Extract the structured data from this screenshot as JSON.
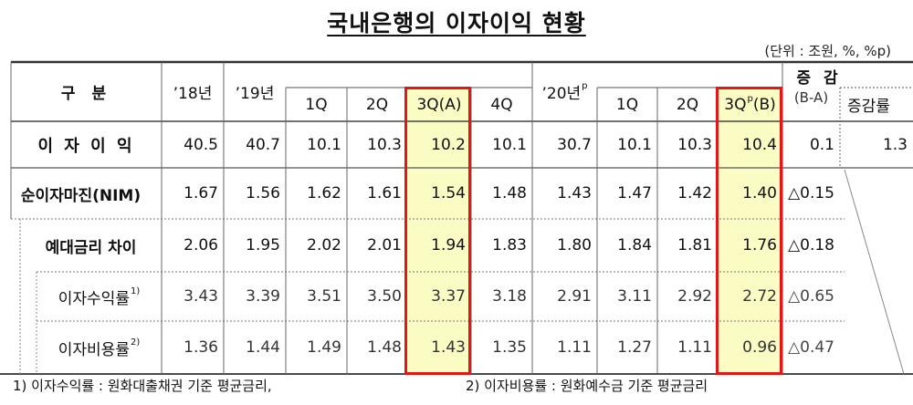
{
  "title": "국내은행의 이자이익 현황",
  "unit_note": "(단위 : 조원, %, %p)",
  "header": {
    "category": "구 분",
    "y18": "’18년",
    "y19": "’19년",
    "y19_q": [
      "1Q",
      "2Q",
      "3Q(A)",
      "4Q"
    ],
    "y20": "’20년",
    "y20_sup": "p",
    "y20_q": [
      "1Q",
      "2Q"
    ],
    "y20_3q_main": "3Q",
    "y20_3q_sup": "p",
    "y20_3q_tail": "(B)",
    "change": "증 감",
    "change_sub": "(B-A)",
    "change_rate": "증감률"
  },
  "rows": [
    {
      "label": "이 자 이 익",
      "sup": "",
      "values": [
        "40.5",
        "40.7",
        "10.1",
        "10.3",
        "10.2",
        "10.1",
        "30.7",
        "10.1",
        "10.3",
        "10.4",
        "0.1",
        "1.3"
      ]
    },
    {
      "label": "순이자마진(NIM)",
      "sup": "",
      "values": [
        "1.67",
        "1.56",
        "1.62",
        "1.61",
        "1.54",
        "1.48",
        "1.43",
        "1.47",
        "1.42",
        "1.40",
        "△0.15"
      ]
    },
    {
      "label": "예대금리 차이",
      "sup": "",
      "values": [
        "2.06",
        "1.95",
        "2.02",
        "2.01",
        "1.94",
        "1.83",
        "1.80",
        "1.84",
        "1.81",
        "1.76",
        "△0.18"
      ]
    },
    {
      "label": "이자수익률",
      "sup": "1)",
      "values": [
        "3.43",
        "3.39",
        "3.51",
        "3.50",
        "3.37",
        "3.18",
        "2.91",
        "3.11",
        "2.92",
        "2.72",
        "△0.65"
      ]
    },
    {
      "label": "이자비용률",
      "sup": "2)",
      "values": [
        "1.36",
        "1.44",
        "1.49",
        "1.48",
        "1.43",
        "1.35",
        "1.11",
        "1.27",
        "1.11",
        "0.96",
        "△0.47"
      ]
    }
  ],
  "footnotes": [
    "1) 이자수익률 : 원화대출채권 기준 평균금리,",
    "2) 이자비용률 : 원화예수금 기준 평균금리"
  ],
  "colors": {
    "highlight": "#fbfbc4",
    "frame": "#e01818"
  }
}
